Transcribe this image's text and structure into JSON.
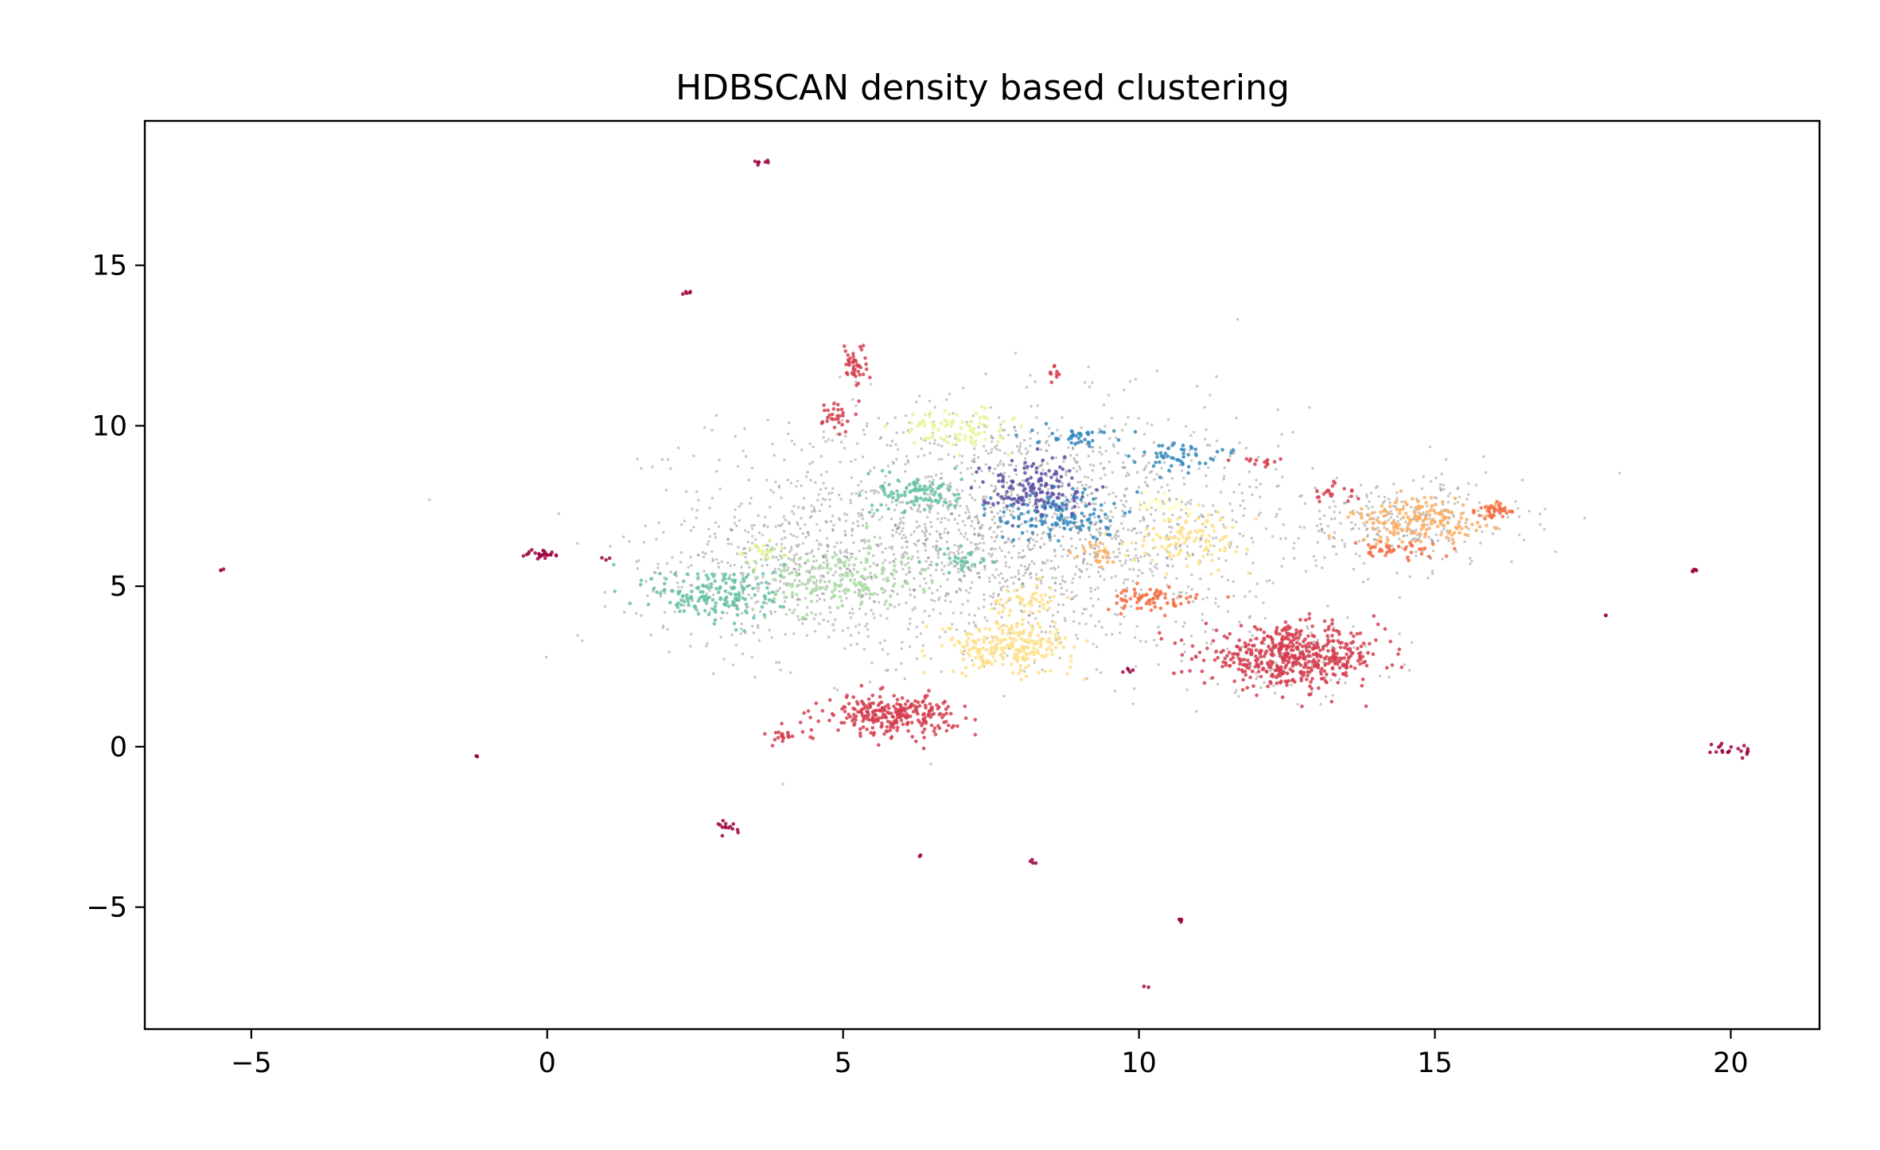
{
  "chart_data": {
    "type": "scatter",
    "title": "HDBSCAN density based clustering",
    "xlabel": "",
    "ylabel": "",
    "xlim": [
      -6.8,
      21.5
    ],
    "ylim": [
      -8.8,
      19.5
    ],
    "xticks": [
      -5,
      0,
      5,
      10,
      15,
      20
    ],
    "xtick_labels": [
      "−5",
      "0",
      "5",
      "10",
      "15",
      "20"
    ],
    "yticks": [
      -5,
      0,
      5,
      10,
      15
    ],
    "ytick_labels": [
      "−5",
      "0",
      "5",
      "10",
      "15"
    ],
    "grid": false,
    "legend": "none",
    "noise_color": "#808080",
    "clusters": [
      {
        "color": "#d53e4f",
        "center": [
          12.6,
          2.8
        ],
        "spread": [
          0.75,
          0.45
        ],
        "n": 520
      },
      {
        "color": "#d53e4f",
        "center": [
          5.8,
          1.0
        ],
        "spread": [
          0.55,
          0.3
        ],
        "n": 280
      },
      {
        "color": "#d53e4f",
        "center": [
          5.2,
          11.9
        ],
        "spread": [
          0.1,
          0.35
        ],
        "n": 45
      },
      {
        "color": "#d53e4f",
        "center": [
          4.9,
          10.3
        ],
        "spread": [
          0.12,
          0.25
        ],
        "n": 30
      },
      {
        "color": "#d53e4f",
        "center": [
          4.0,
          0.3
        ],
        "spread": [
          0.15,
          0.1
        ],
        "n": 20
      },
      {
        "color": "#d53e4f",
        "center": [
          13.3,
          7.9
        ],
        "spread": [
          0.2,
          0.15
        ],
        "n": 20
      },
      {
        "color": "#d53e4f",
        "center": [
          12.0,
          8.9
        ],
        "spread": [
          0.2,
          0.1
        ],
        "n": 14
      },
      {
        "color": "#d53e4f",
        "center": [
          8.6,
          11.5
        ],
        "spread": [
          0.1,
          0.2
        ],
        "n": 10
      },
      {
        "color": "#9e0142",
        "center": [
          -0.1,
          6.0
        ],
        "spread": [
          0.15,
          0.08
        ],
        "n": 25
      },
      {
        "color": "#9e0142",
        "center": [
          3.1,
          -2.5
        ],
        "spread": [
          0.1,
          0.1
        ],
        "n": 14
      },
      {
        "color": "#9e0142",
        "center": [
          20.0,
          -0.1
        ],
        "spread": [
          0.15,
          0.15
        ],
        "n": 20
      },
      {
        "color": "#9e0142",
        "center": [
          3.6,
          18.2
        ],
        "spread": [
          0.08,
          0.04
        ],
        "n": 8
      },
      {
        "color": "#9e0142",
        "center": [
          2.4,
          14.15
        ],
        "spread": [
          0.03,
          0.03
        ],
        "n": 5
      },
      {
        "color": "#9e0142",
        "center": [
          10.7,
          -5.4
        ],
        "spread": [
          0.03,
          0.05
        ],
        "n": 5
      },
      {
        "color": "#9e0142",
        "center": [
          8.2,
          -3.6
        ],
        "spread": [
          0.03,
          0.03
        ],
        "n": 4
      },
      {
        "color": "#9e0142",
        "center": [
          19.4,
          5.5
        ],
        "spread": [
          0.04,
          0.03
        ],
        "n": 5
      },
      {
        "color": "#9e0142",
        "center": [
          9.8,
          2.4
        ],
        "spread": [
          0.05,
          0.04
        ],
        "n": 5
      },
      {
        "color": "#9e0142",
        "center": [
          -5.5,
          5.5
        ],
        "spread": [
          0.02,
          0.02
        ],
        "n": 3
      },
      {
        "color": "#9e0142",
        "center": [
          -1.2,
          -0.3
        ],
        "spread": [
          0.02,
          0.02
        ],
        "n": 3
      },
      {
        "color": "#9e0142",
        "center": [
          6.3,
          -3.4
        ],
        "spread": [
          0.02,
          0.02
        ],
        "n": 2
      },
      {
        "color": "#9e0142",
        "center": [
          10.1,
          -7.5
        ],
        "spread": [
          0.02,
          0.02
        ],
        "n": 2
      },
      {
        "color": "#9e0142",
        "center": [
          17.9,
          4.1
        ],
        "spread": [
          0.02,
          0.02
        ],
        "n": 2
      },
      {
        "color": "#9e0142",
        "center": [
          1.0,
          5.9
        ],
        "spread": [
          0.03,
          0.03
        ],
        "n": 3
      },
      {
        "color": "#fdae61",
        "center": [
          14.8,
          7.0
        ],
        "spread": [
          0.6,
          0.35
        ],
        "n": 170
      },
      {
        "color": "#f46d43",
        "center": [
          16.0,
          7.35
        ],
        "spread": [
          0.15,
          0.12
        ],
        "n": 40
      },
      {
        "color": "#f46d43",
        "center": [
          14.3,
          6.1
        ],
        "spread": [
          0.35,
          0.12
        ],
        "n": 40
      },
      {
        "color": "#f46d43",
        "center": [
          10.2,
          4.6
        ],
        "spread": [
          0.4,
          0.18
        ],
        "n": 70
      },
      {
        "color": "#fdae61",
        "center": [
          9.3,
          6.0
        ],
        "spread": [
          0.15,
          0.2
        ],
        "n": 25
      },
      {
        "color": "#fee08b",
        "center": [
          7.8,
          3.1
        ],
        "spread": [
          0.55,
          0.4
        ],
        "n": 240
      },
      {
        "color": "#fee08b",
        "center": [
          8.1,
          4.6
        ],
        "spread": [
          0.3,
          0.25
        ],
        "n": 50
      },
      {
        "color": "#fee08b",
        "center": [
          10.9,
          6.5
        ],
        "spread": [
          0.5,
          0.4
        ],
        "n": 110
      },
      {
        "color": "#ffffbf",
        "center": [
          10.4,
          7.6
        ],
        "spread": [
          0.25,
          0.18
        ],
        "n": 25
      },
      {
        "color": "#e6f598",
        "center": [
          6.9,
          9.9
        ],
        "spread": [
          0.45,
          0.3
        ],
        "n": 90
      },
      {
        "color": "#e6f598",
        "center": [
          3.6,
          6.1
        ],
        "spread": [
          0.2,
          0.2
        ],
        "n": 25
      },
      {
        "color": "#abdda4",
        "center": [
          4.9,
          5.2
        ],
        "spread": [
          0.7,
          0.5
        ],
        "n": 160
      },
      {
        "color": "#66c2a5",
        "center": [
          6.3,
          7.9
        ],
        "spread": [
          0.35,
          0.3
        ],
        "n": 100
      },
      {
        "color": "#66c2a5",
        "center": [
          2.9,
          4.7
        ],
        "spread": [
          0.55,
          0.45
        ],
        "n": 170
      },
      {
        "color": "#66c2a5",
        "center": [
          7.0,
          5.8
        ],
        "spread": [
          0.25,
          0.2
        ],
        "n": 30
      },
      {
        "color": "#3288bd",
        "center": [
          8.6,
          7.2
        ],
        "spread": [
          0.5,
          0.4
        ],
        "n": 130
      },
      {
        "color": "#3288bd",
        "center": [
          10.6,
          9.1
        ],
        "spread": [
          0.35,
          0.2
        ],
        "n": 50
      },
      {
        "color": "#3288bd",
        "center": [
          8.9,
          9.7
        ],
        "spread": [
          0.35,
          0.15
        ],
        "n": 40
      },
      {
        "color": "#5e4fa2",
        "center": [
          8.2,
          8.1
        ],
        "spread": [
          0.45,
          0.4
        ],
        "n": 140
      }
    ],
    "noise_regions": [
      {
        "center": [
          7.7,
          6.8
        ],
        "spread": [
          2.4,
          1.9
        ],
        "n": 1900
      },
      {
        "center": [
          4.0,
          5.2
        ],
        "spread": [
          1.3,
          1.0
        ],
        "n": 350
      },
      {
        "center": [
          14.5,
          7.0
        ],
        "spread": [
          1.0,
          0.7
        ],
        "n": 280
      },
      {
        "center": [
          12.6,
          2.8
        ],
        "spread": [
          0.9,
          0.6
        ],
        "n": 120
      }
    ]
  }
}
